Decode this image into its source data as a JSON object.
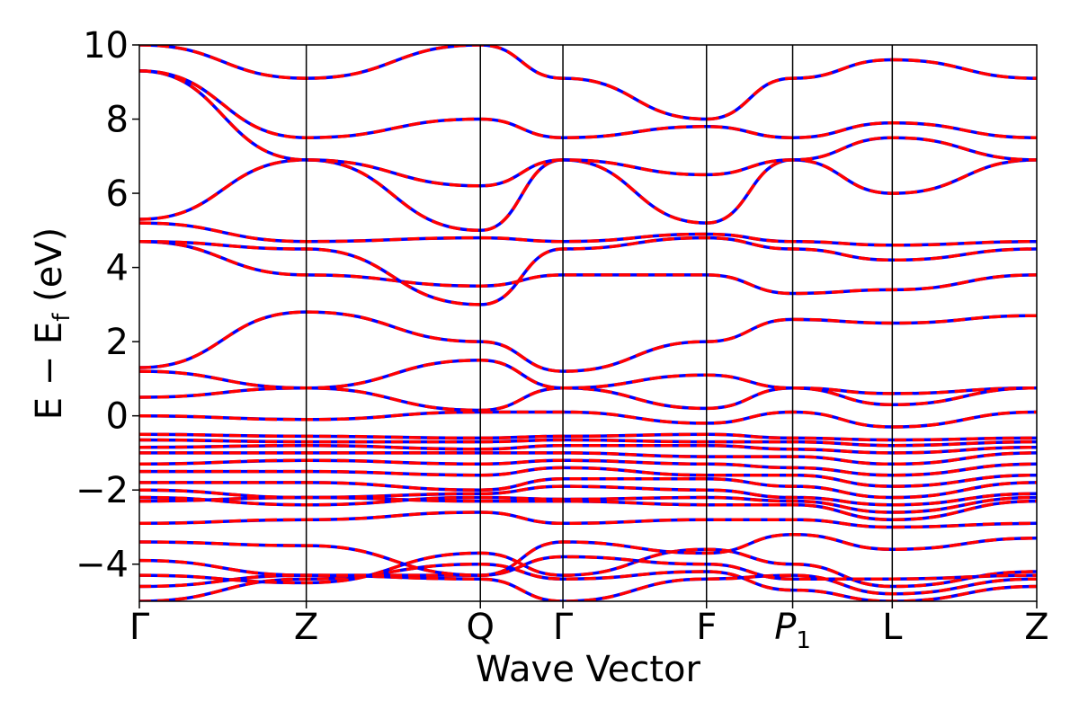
{
  "chart_data": {
    "type": "line",
    "title": "",
    "xlabel": "Wave Vector",
    "ylabel": "E − E",
    "ylabel_subscript": "f",
    "ylabel_unit": " (eV)",
    "ylim": [
      -5,
      10
    ],
    "yticks": [
      {
        "value": 10,
        "label": "10"
      },
      {
        "value": 8,
        "label": "8"
      },
      {
        "value": 6,
        "label": "6"
      },
      {
        "value": 4,
        "label": "4"
      },
      {
        "value": 2,
        "label": "2"
      },
      {
        "value": 0,
        "label": "0"
      },
      {
        "value": -2,
        "label": "−2"
      },
      {
        "value": -4,
        "label": "−4"
      }
    ],
    "kpoints": [
      {
        "label": "Γ",
        "pos": 0.0
      },
      {
        "label": "Z",
        "pos": 0.186
      },
      {
        "label": "Q",
        "pos": 0.38
      },
      {
        "label": "Γ",
        "pos": 0.472
      },
      {
        "label": "F",
        "pos": 0.632
      },
      {
        "label": "P",
        "sub": "1",
        "pos": 0.728
      },
      {
        "label": "L",
        "pos": 0.839
      },
      {
        "label": "Z",
        "pos": 1.0
      }
    ],
    "grid": false,
    "series_styles": [
      {
        "color": "#0000ff",
        "style": "solid"
      },
      {
        "color": "#ff0000",
        "style": "dashed"
      }
    ],
    "bands": [
      [
        -5.0,
        -4.4,
        -4.0,
        -4.4,
        -4.2,
        -4.7,
        -5.0,
        -4.6
      ],
      [
        -4.6,
        -4.3,
        -4.4,
        -5.0,
        -4.4,
        -4.3,
        -4.8,
        -4.4
      ],
      [
        -4.3,
        -4.5,
        -3.7,
        -4.3,
        -3.6,
        -4.0,
        -4.6,
        -4.2
      ],
      [
        -3.9,
        -4.3,
        -4.3,
        -3.8,
        -4.0,
        -4.4,
        -4.4,
        -4.3
      ],
      [
        -3.4,
        -3.5,
        -4.3,
        -3.4,
        -3.7,
        -3.2,
        -3.6,
        -3.3
      ],
      [
        -2.9,
        -2.8,
        -2.6,
        -2.9,
        -2.8,
        -2.8,
        -3.0,
        -2.9
      ],
      [
        -2.3,
        -2.2,
        -2.3,
        -2.3,
        -2.4,
        -2.4,
        -2.8,
        -2.3
      ],
      [
        -2.2,
        -2.4,
        -2.2,
        -2.25,
        -2.2,
        -2.3,
        -2.6,
        -2.2
      ],
      [
        -2.0,
        -2.2,
        -2.1,
        -1.9,
        -2.0,
        -2.2,
        -2.4,
        -2.1
      ],
      [
        -1.8,
        -1.8,
        -2.0,
        -1.7,
        -1.7,
        -1.9,
        -2.2,
        -1.8
      ],
      [
        -1.5,
        -1.5,
        -1.6,
        -1.4,
        -1.6,
        -1.6,
        -1.9,
        -1.6
      ],
      [
        -1.3,
        -1.2,
        -1.3,
        -1.2,
        -1.3,
        -1.4,
        -1.6,
        -1.3
      ],
      [
        -1.0,
        -1.0,
        -1.0,
        -1.0,
        -1.1,
        -1.1,
        -1.3,
        -1.0
      ],
      [
        -0.85,
        -0.8,
        -0.9,
        -0.8,
        -0.8,
        -0.9,
        -1.0,
        -0.85
      ],
      [
        -0.65,
        -0.7,
        -0.7,
        -0.65,
        -0.7,
        -0.7,
        -0.8,
        -0.7
      ],
      [
        -0.5,
        -0.55,
        -0.6,
        -0.55,
        -0.5,
        -0.6,
        -0.65,
        -0.6
      ],
      [
        0.0,
        -0.1,
        0.1,
        0.1,
        -0.2,
        0.1,
        -0.3,
        0.1
      ],
      [
        0.5,
        0.75,
        0.15,
        0.75,
        0.2,
        0.75,
        0.6,
        0.75
      ],
      [
        1.2,
        0.75,
        1.5,
        0.75,
        1.1,
        0.75,
        0.3,
        0.75
      ],
      [
        1.3,
        2.8,
        2.0,
        1.2,
        2.0,
        2.6,
        2.5,
        2.7
      ],
      [
        4.7,
        3.8,
        3.5,
        3.8,
        3.8,
        3.3,
        3.4,
        3.8
      ],
      [
        4.7,
        4.5,
        3.0,
        4.5,
        4.8,
        4.5,
        4.2,
        4.5
      ],
      [
        5.2,
        4.7,
        4.8,
        4.7,
        4.9,
        4.7,
        4.6,
        4.7
      ],
      [
        5.3,
        6.9,
        5.0,
        6.9,
        5.2,
        6.9,
        6.0,
        6.9
      ],
      [
        9.3,
        6.9,
        6.2,
        6.9,
        6.5,
        6.9,
        7.5,
        6.9
      ],
      [
        9.3,
        7.5,
        8.0,
        7.5,
        7.8,
        7.5,
        7.9,
        7.5
      ],
      [
        10.0,
        9.1,
        10.0,
        9.1,
        8.0,
        9.1,
        9.6,
        9.1
      ]
    ]
  }
}
